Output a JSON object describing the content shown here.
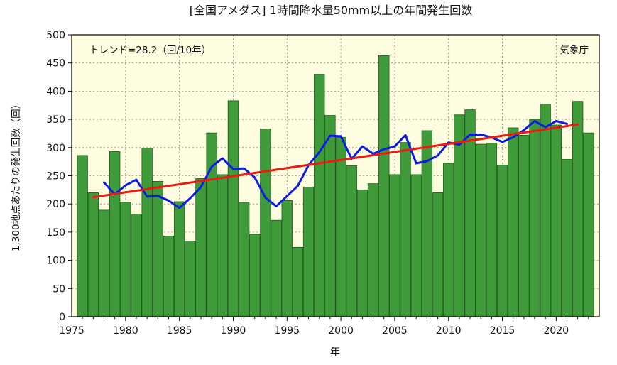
{
  "chart_data": {
    "type": "bar",
    "title": "[全国アメダス] 1時間降水量50mm以上の年間発生回数",
    "xlabel": "年",
    "ylabel": "1,300地点あたりの発生回数（回）",
    "trend_label": "トレンド=28.2（回/10年）",
    "source_label": "気象庁",
    "xlim": [
      1975,
      2024
    ],
    "ylim": [
      0,
      500
    ],
    "x_ticks": [
      1975,
      1980,
      1985,
      1990,
      1995,
      2000,
      2005,
      2010,
      2015,
      2020
    ],
    "y_ticks": [
      0,
      50,
      100,
      150,
      200,
      250,
      300,
      350,
      400,
      450,
      500
    ],
    "grid": true,
    "colors": {
      "bar_fill": "#3f9b3a",
      "bar_stroke": "#1f5a1c",
      "plot_background": "#fffde0",
      "moving_average": "#0b1be6",
      "trend_line": "#ee1a0f",
      "grid": "#888888"
    },
    "series": [
      {
        "type": "bar",
        "x": [
          1976,
          1977,
          1978,
          1979,
          1980,
          1981,
          1982,
          1983,
          1984,
          1985,
          1986,
          1987,
          1988,
          1989,
          1990,
          1991,
          1992,
          1993,
          1994,
          1995,
          1996,
          1997,
          1998,
          1999,
          2000,
          2001,
          2002,
          2003,
          2004,
          2005,
          2006,
          2007,
          2008,
          2009,
          2010,
          2011,
          2012,
          2013,
          2014,
          2015,
          2016,
          2017,
          2018,
          2019,
          2020,
          2021,
          2022,
          2023
        ],
        "values": [
          286,
          220,
          189,
          293,
          203,
          182,
          299,
          240,
          143,
          204,
          134,
          245,
          326,
          252,
          383,
          203,
          146,
          333,
          171,
          206,
          123,
          230,
          430,
          357,
          318,
          268,
          225,
          236,
          463,
          252,
          309,
          252,
          330,
          220,
          272,
          358,
          367,
          306,
          308,
          269,
          335,
          322,
          350,
          377,
          340,
          279,
          382,
          326
        ]
      },
      {
        "type": "line",
        "x": [
          1978,
          1979,
          1980,
          1981,
          1982,
          1983,
          1984,
          1985,
          1986,
          1987,
          1988,
          1989,
          1990,
          1991,
          1992,
          1993,
          1994,
          1995,
          1996,
          1997,
          1998,
          1999,
          2000,
          2001,
          2002,
          2003,
          2004,
          2005,
          2006,
          2007,
          2008,
          2009,
          2010,
          2011,
          2012,
          2013,
          2014,
          2015,
          2016,
          2017,
          2018,
          2019,
          2020,
          2021
        ],
        "values": [
          238,
          217,
          233,
          243,
          213,
          214,
          206,
          193,
          210,
          230,
          266,
          281,
          262,
          263,
          247,
          211,
          196,
          214,
          232,
          269,
          292,
          321,
          320,
          280,
          302,
          289,
          297,
          302,
          322,
          272,
          276,
          286,
          309,
          305,
          323,
          323,
          318,
          310,
          318,
          331,
          347,
          336,
          347,
          342
        ]
      },
      {
        "type": "line",
        "x": [
          1977,
          2022
        ],
        "values": [
          212,
          341
        ]
      }
    ]
  }
}
